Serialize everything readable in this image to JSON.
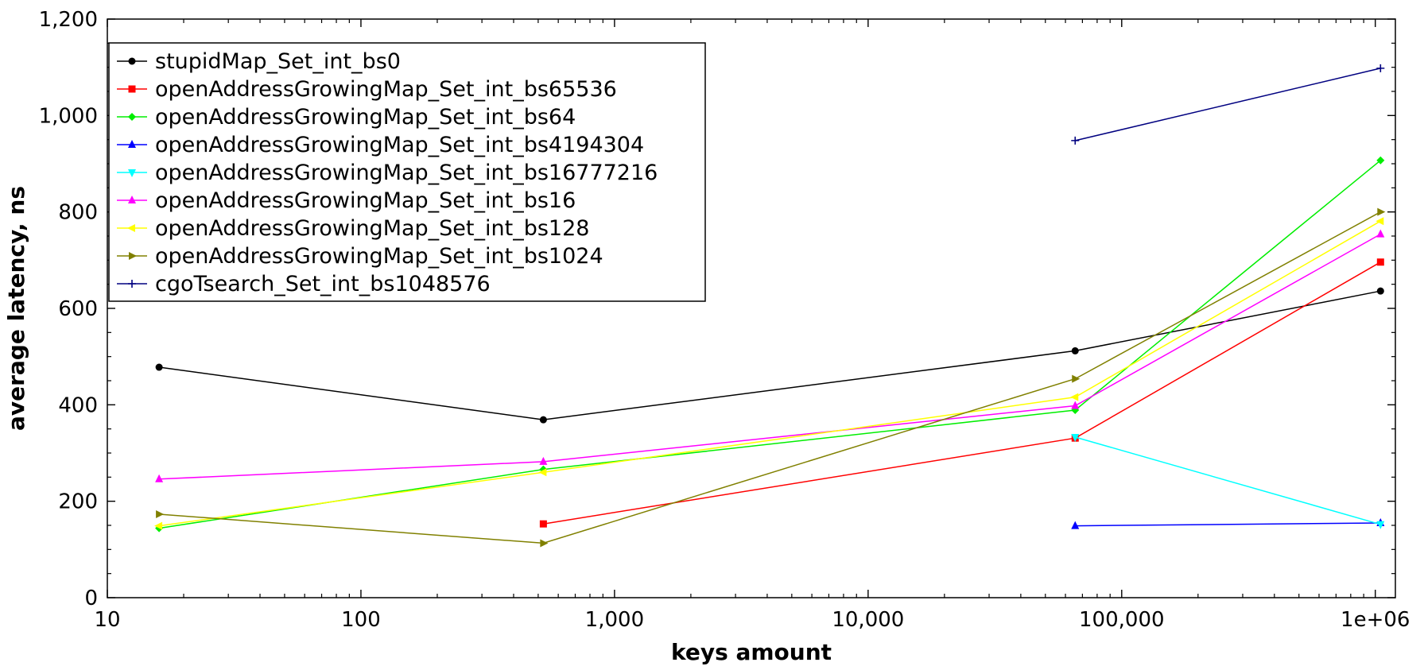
{
  "chart_data": {
    "type": "line",
    "title": "",
    "xlabel": "keys amount",
    "ylabel": "average latency, ns",
    "xscale": "log",
    "xlim": [
      10,
      1200000
    ],
    "ylim": [
      0,
      1200
    ],
    "grid": false,
    "legend_position": "top-left",
    "x_ticks": [
      {
        "value": 10,
        "label": "10"
      },
      {
        "value": 100,
        "label": "100"
      },
      {
        "value": 1000,
        "label": "1,000"
      },
      {
        "value": 10000,
        "label": "10,000"
      },
      {
        "value": 100000,
        "label": "100,000"
      },
      {
        "value": 1000000,
        "label": "1e+06"
      }
    ],
    "y_ticks": [
      {
        "value": 0,
        "label": "0"
      },
      {
        "value": 200,
        "label": "200"
      },
      {
        "value": 400,
        "label": "400"
      },
      {
        "value": 600,
        "label": "600"
      },
      {
        "value": 800,
        "label": "800"
      },
      {
        "value": 1000,
        "label": "1,000"
      },
      {
        "value": 1200,
        "label": "1,200"
      }
    ],
    "series": [
      {
        "name": "stupidMap_Set_int_bs0",
        "color": "#000000",
        "marker": "circle",
        "points": [
          [
            16,
            478
          ],
          [
            524,
            369
          ],
          [
            65536,
            512
          ],
          [
            1048576,
            636
          ]
        ]
      },
      {
        "name": "openAddressGrowingMap_Set_int_bs65536",
        "color": "#ff0000",
        "marker": "square",
        "points": [
          [
            524,
            153
          ],
          [
            65536,
            331
          ],
          [
            1048576,
            696
          ]
        ]
      },
      {
        "name": "openAddressGrowingMap_Set_int_bs64",
        "color": "#00ee00",
        "marker": "diamond",
        "points": [
          [
            16,
            144
          ],
          [
            524,
            266
          ],
          [
            65536,
            389
          ],
          [
            1048576,
            907
          ]
        ]
      },
      {
        "name": "openAddressGrowingMap_Set_int_bs4194304",
        "color": "#0000ff",
        "marker": "triangle-up",
        "points": [
          [
            65536,
            149
          ],
          [
            1048576,
            155
          ]
        ]
      },
      {
        "name": "openAddressGrowingMap_Set_int_bs16777216",
        "color": "#00ffff",
        "marker": "triangle-down",
        "points": [
          [
            65536,
            333
          ],
          [
            1048576,
            152
          ]
        ]
      },
      {
        "name": "openAddressGrowingMap_Set_int_bs16",
        "color": "#ff00ff",
        "marker": "triangle-up",
        "points": [
          [
            16,
            246
          ],
          [
            524,
            282
          ],
          [
            65536,
            398
          ],
          [
            1048576,
            754
          ]
        ]
      },
      {
        "name": "openAddressGrowingMap_Set_int_bs128",
        "color": "#ffff00",
        "marker": "triangle-left",
        "points": [
          [
            16,
            149
          ],
          [
            524,
            260
          ],
          [
            65536,
            416
          ],
          [
            1048576,
            781
          ]
        ]
      },
      {
        "name": "openAddressGrowingMap_Set_int_bs1024",
        "color": "#808000",
        "marker": "triangle-right",
        "points": [
          [
            16,
            173
          ],
          [
            524,
            113
          ],
          [
            65536,
            454
          ],
          [
            1048576,
            800
          ]
        ]
      },
      {
        "name": "cgoTsearch_Set_int_bs1048576",
        "color": "#000080",
        "marker": "plus",
        "points": [
          [
            65536,
            948
          ],
          [
            1048576,
            1098
          ]
        ]
      }
    ]
  }
}
